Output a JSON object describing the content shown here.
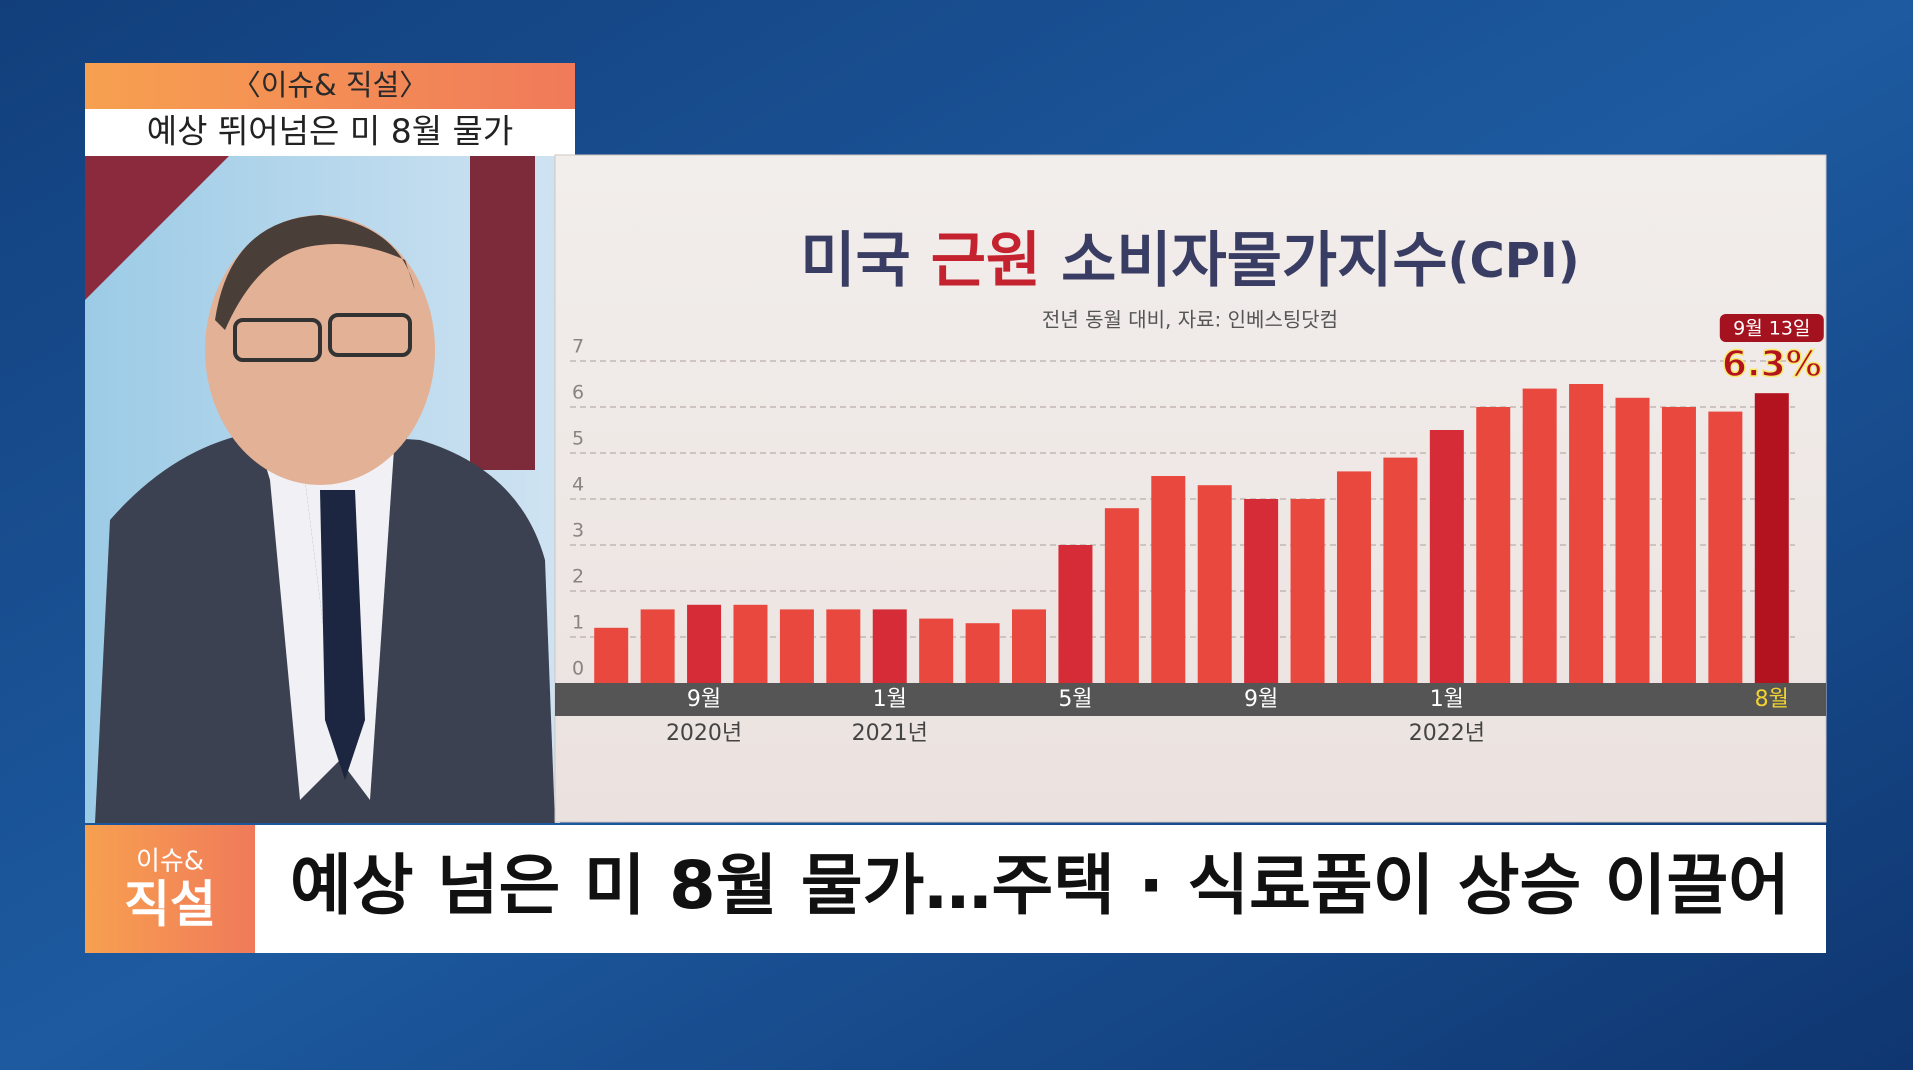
{
  "header": {
    "program": "〈이슈& 직설〉",
    "headline": "예상 뛰어넘은 미 8월 물가"
  },
  "logo": {
    "top": "이슈&",
    "bottom": "직설"
  },
  "ticker": "예상 넘은 미 8월 물가…주택 · 식료품이 상승 이끌어",
  "chart_data": {
    "type": "bar",
    "title": [
      "미국",
      "근원",
      "소비자물가지수",
      "(CPI)"
    ],
    "subtitle": "전년 동월 대비, 자료: 인베스팅닷컴",
    "annotation": "9월 13일",
    "categories": [
      null,
      null,
      "9월",
      null,
      null,
      null,
      "1월",
      null,
      null,
      null,
      "5월",
      null,
      null,
      null,
      "9월",
      null,
      null,
      null,
      "1월",
      null,
      null,
      null,
      null,
      null,
      null,
      "8월"
    ],
    "year_labels": [
      null,
      null,
      "2020년",
      null,
      null,
      null,
      "2021년",
      null,
      null,
      null,
      null,
      null,
      null,
      null,
      null,
      null,
      null,
      null,
      "2022년",
      null,
      null,
      null,
      null,
      null,
      null,
      null
    ],
    "values": [
      1.2,
      1.6,
      1.7,
      1.7,
      1.6,
      1.6,
      1.6,
      1.4,
      1.3,
      1.6,
      3.0,
      3.8,
      4.5,
      4.3,
      4.0,
      4.0,
      4.6,
      4.9,
      5.5,
      6.0,
      6.4,
      6.5,
      6.2,
      6.0,
      5.9,
      6.3
    ],
    "value_labels": [
      null,
      null,
      null,
      null,
      null,
      null,
      null,
      null,
      null,
      null,
      null,
      null,
      null,
      null,
      null,
      null,
      null,
      null,
      null,
      null,
      null,
      null,
      null,
      null,
      null,
      "6.3%"
    ],
    "colors": [
      "#e8483e",
      "#e8483e",
      "#d52c38",
      "#e8483e",
      "#e8483e",
      "#e8483e",
      "#d52c38",
      "#e8483e",
      "#e8483e",
      "#e8483e",
      "#d52c38",
      "#e8483e",
      "#e8483e",
      "#e8483e",
      "#d52c38",
      "#e8483e",
      "#e8483e",
      "#e8483e",
      "#d52c38",
      "#e8483e",
      "#e8483e",
      "#e8483e",
      "#e8483e",
      "#e8483e",
      "#e8483e",
      "#b3121f"
    ],
    "ylim": [
      0,
      7
    ],
    "yticks": [
      0,
      1,
      2,
      3,
      4,
      5,
      6,
      7
    ],
    "grid": true
  }
}
